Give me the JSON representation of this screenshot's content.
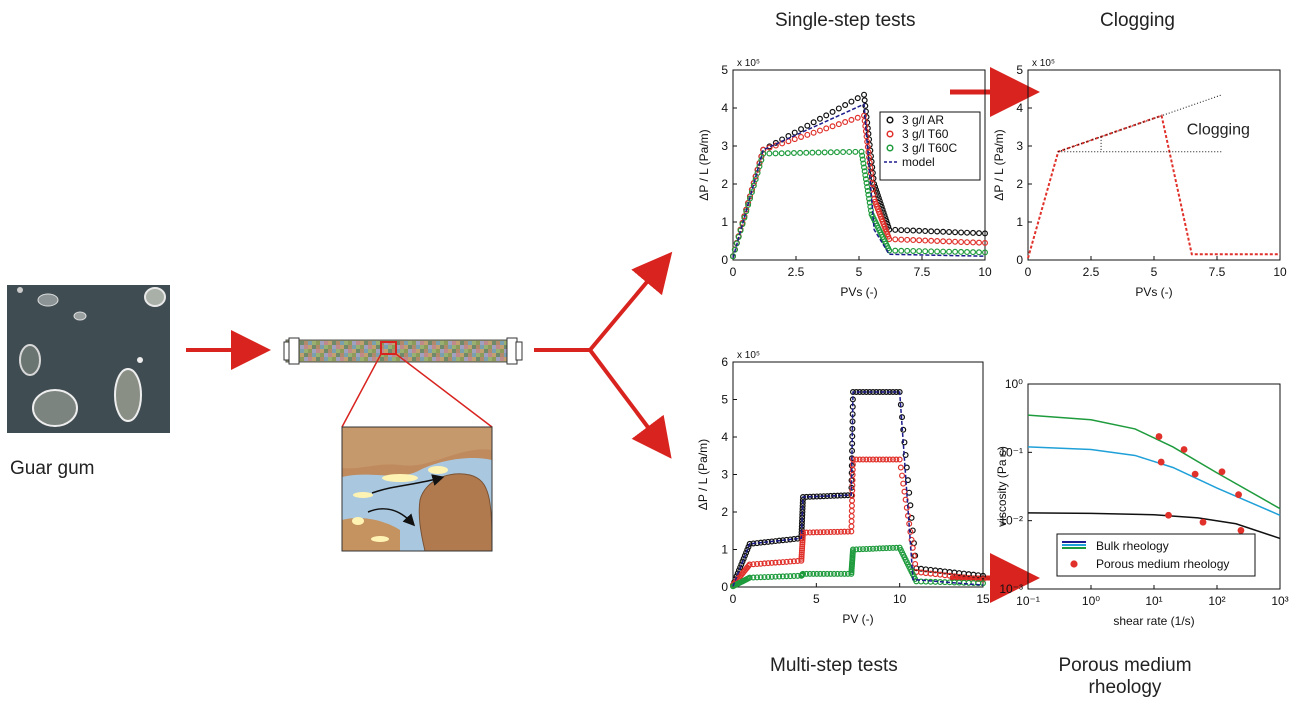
{
  "captions": {
    "guar": "Guar gum",
    "single_step": "Single-step tests",
    "clogging": "Clogging",
    "multi_step": "Multi-step tests",
    "porous_line1": "Porous medium",
    "porous_line2": "rheology"
  },
  "colors": {
    "arrow": "#d8231f",
    "black_series": "#111111",
    "red_series": "#e0312b",
    "green_series": "#1e9b3c",
    "model": "#1c1c8c",
    "teal_line": "#1fa0d8",
    "green_line": "#1e9b3c",
    "water": "#a9c8e0",
    "rock": "#bf8a5e",
    "sand": "#d9a877",
    "gum": "#fff3b3"
  },
  "chart_data": [
    {
      "id": "single_step",
      "type": "scatter",
      "title": "",
      "xlabel": "PVs (-)",
      "ylabel": "ΔP / L (Pa/m)",
      "y_multiplier": "x 10⁵",
      "xlim": [
        0,
        10
      ],
      "ylim": [
        0,
        5
      ],
      "xticks": [
        "0",
        "2.5",
        "5",
        "7.5",
        "10"
      ],
      "yticks": [
        "0",
        "1",
        "2",
        "3",
        "4",
        "5"
      ],
      "legend": [
        "3 g/l AR",
        "3 g/l T60",
        "3 g/l T60C",
        "model"
      ],
      "legend_position": "top-right",
      "series": [
        {
          "name": "3 g/l AR",
          "color": "black",
          "x": [
            0,
            1.2,
            5.2,
            5.6,
            6.2,
            10
          ],
          "y": [
            0.1,
            2.9,
            4.35,
            2.0,
            0.8,
            0.7
          ]
        },
        {
          "name": "3 g/l T60",
          "color": "red",
          "x": [
            0,
            1.2,
            5.2,
            5.6,
            6.2,
            10
          ],
          "y": [
            0.1,
            2.9,
            3.8,
            1.6,
            0.55,
            0.45
          ]
        },
        {
          "name": "3 g/l T60C",
          "color": "green",
          "x": [
            0,
            1.2,
            5.1,
            5.5,
            6.2,
            10
          ],
          "y": [
            0.1,
            2.8,
            2.85,
            1.2,
            0.25,
            0.2
          ]
        },
        {
          "name": "model",
          "color": "model",
          "x": [
            0,
            1.2,
            5.2,
            5.6,
            6.2,
            10
          ],
          "y": [
            0.05,
            2.9,
            4.1,
            0.8,
            0.15,
            0.1
          ]
        }
      ]
    },
    {
      "id": "clogging",
      "type": "line",
      "title": "",
      "xlabel": "PVs (-)",
      "ylabel": "ΔP / L (Pa/m)",
      "y_multiplier": "x 10⁵",
      "xlim": [
        0,
        10
      ],
      "ylim": [
        0,
        5
      ],
      "xticks": [
        "0",
        "2.5",
        "5",
        "7.5",
        "10"
      ],
      "yticks": [
        "0",
        "1",
        "2",
        "3",
        "4",
        "5"
      ],
      "annotation": "Clogging",
      "series": [
        {
          "name": "",
          "color": "red",
          "x": [
            0,
            1.2,
            5.3,
            6.5,
            10
          ],
          "y": [
            0.05,
            2.85,
            3.8,
            0.15,
            0.15
          ]
        }
      ]
    },
    {
      "id": "multi_step",
      "type": "scatter",
      "title": "",
      "xlabel": "PV (-)",
      "ylabel": "ΔP / L (Pa/m)",
      "y_multiplier": "x 10⁵",
      "xlim": [
        0,
        15
      ],
      "ylim": [
        0,
        6
      ],
      "xticks": [
        "0",
        "5",
        "10",
        "15"
      ],
      "yticks": [
        "0",
        "1",
        "2",
        "3",
        "4",
        "5",
        "6"
      ],
      "series": [
        {
          "name": "black",
          "color": "black",
          "x": [
            0,
            1,
            4.1,
            4.2,
            7.1,
            7.2,
            10.0,
            11,
            15
          ],
          "y": [
            0.05,
            1.15,
            1.3,
            2.4,
            2.45,
            5.2,
            5.2,
            0.5,
            0.3
          ]
        },
        {
          "name": "red",
          "color": "red",
          "x": [
            0,
            1,
            4.1,
            4.2,
            7.1,
            7.2,
            10.0,
            11,
            15
          ],
          "y": [
            0.05,
            0.6,
            0.7,
            1.45,
            1.48,
            3.4,
            3.4,
            0.4,
            0.2
          ]
        },
        {
          "name": "green",
          "color": "green",
          "x": [
            0,
            1,
            4.1,
            4.2,
            7.1,
            7.2,
            10.0,
            11,
            15
          ],
          "y": [
            0.02,
            0.25,
            0.3,
            0.35,
            0.35,
            1.0,
            1.05,
            0.15,
            0.1
          ]
        },
        {
          "name": "model",
          "color": "model",
          "x": [
            0,
            1,
            4.1,
            4.2,
            7.1,
            7.2,
            10.0,
            10.8,
            15
          ],
          "y": [
            0.02,
            1.15,
            1.3,
            2.4,
            2.45,
            5.2,
            5.2,
            0.2,
            0.05
          ]
        }
      ]
    },
    {
      "id": "porous_rheology",
      "type": "line",
      "title": "",
      "xlabel": "shear rate (1/s)",
      "ylabel": "viscosity (Pa s)",
      "xscale": "log",
      "yscale": "log",
      "xlim": [
        0.1,
        1000
      ],
      "ylim": [
        0.001,
        1
      ],
      "xticks": [
        "10⁻¹",
        "10⁰",
        "10¹",
        "10²",
        "10³"
      ],
      "yticks": [
        "10⁻³",
        "10⁻²",
        "10⁻¹",
        "10⁰"
      ],
      "legend": [
        "Bulk rheology",
        "Porous medium rheology"
      ],
      "legend_position": "bottom-right",
      "series": [
        {
          "name": "Bulk rheology",
          "color": "green_line",
          "x": [
            0.1,
            1,
            5,
            20,
            100,
            1000
          ],
          "y": [
            0.35,
            0.3,
            0.22,
            0.12,
            0.05,
            0.015
          ]
        },
        {
          "name": "Bulk rheology",
          "color": "teal_line",
          "x": [
            0.1,
            1,
            5,
            20,
            100,
            1000
          ],
          "y": [
            0.12,
            0.11,
            0.09,
            0.06,
            0.03,
            0.012
          ]
        },
        {
          "name": "Bulk rheology",
          "color": "black",
          "x": [
            0.1,
            1,
            10,
            50,
            200,
            1000
          ],
          "y": [
            0.013,
            0.0128,
            0.0122,
            0.011,
            0.009,
            0.0055
          ]
        },
        {
          "name": "Porous medium rheology",
          "color": "red",
          "type": "points",
          "x": [
            12,
            30,
            120,
            13,
            45,
            220,
            17,
            60,
            240
          ],
          "y": [
            0.17,
            0.11,
            0.052,
            0.072,
            0.048,
            0.024,
            0.012,
            0.0095,
            0.0072
          ]
        }
      ]
    }
  ]
}
